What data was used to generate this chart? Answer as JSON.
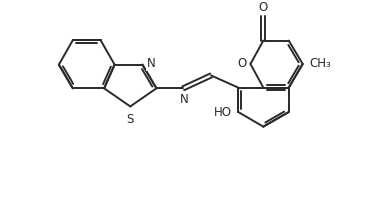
{
  "bg_color": "#ffffff",
  "line_color": "#2a2a2a",
  "line_width": 1.4,
  "atoms": {
    "N_imine": "N",
    "N_thiazole": "N",
    "S_thiazole": "S",
    "O_ring": "O",
    "O_carbonyl": "O",
    "OH": "HO",
    "methyl": "CH₃"
  },
  "figsize": [
    3.72,
    1.97
  ],
  "dpi": 100,
  "xlim": [
    0,
    10
  ],
  "ylim": [
    0,
    5.3
  ]
}
